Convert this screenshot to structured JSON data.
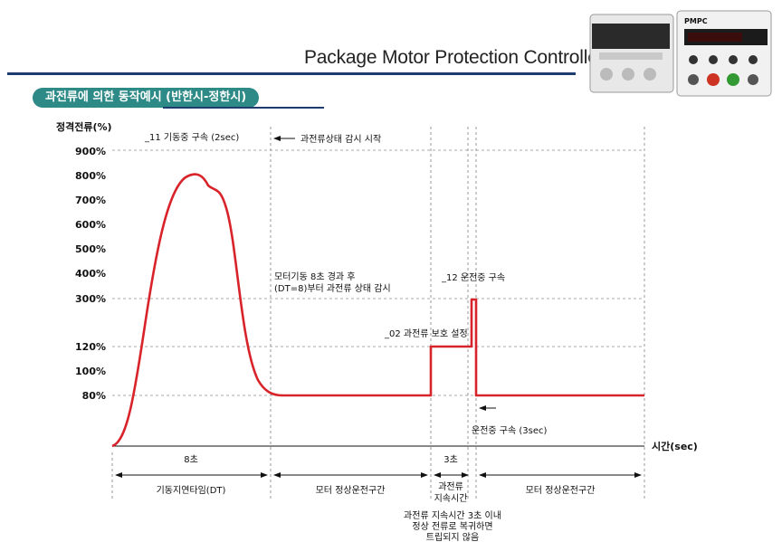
{
  "header": {
    "title": "Package Motor Protection Controller",
    "section_title": "과전류에 의한 동작예시 (반한시-정한시)"
  },
  "device": {
    "brand": "PMPC"
  },
  "chart_data": {
    "type": "line",
    "ylabel": "정격전류(%)",
    "xlabel": "시간(sec)",
    "y_ticks": [
      "900%",
      "800%",
      "700%",
      "600%",
      "500%",
      "400%",
      "300%",
      "120%",
      "100%",
      "80%"
    ],
    "series": [
      {
        "values_description_free": true,
        "points": [
          [
            0,
            0
          ],
          [
            0.5,
            200
          ],
          [
            1.0,
            500
          ],
          [
            1.6,
            760
          ],
          [
            2.0,
            800
          ],
          [
            2.4,
            750
          ],
          [
            2.9,
            560
          ],
          [
            3.5,
            250
          ],
          [
            4.2,
            110
          ],
          [
            5.0,
            80
          ],
          [
            8,
            80
          ],
          [
            14,
            80
          ],
          [
            14,
            120
          ],
          [
            15.5,
            120
          ],
          [
            15.5,
            300
          ],
          [
            15.7,
            300
          ],
          [
            15.7,
            80
          ],
          [
            20,
            80
          ]
        ]
      }
    ],
    "annotations": {
      "a1": "_11 기동중 구속 (2sec)",
      "a2": "과전류상태 감시 시작",
      "a3": "모터기동 8초 경과 후",
      "a4": "(DT=8)부터 과전류 상태 감시",
      "a5": "_12 운전중 구속",
      "a6": "_02 과전류 보호 설정",
      "a7": "운전중 구속 (3sec)"
    },
    "durations": {
      "d1": "8초",
      "d2": "3초"
    },
    "phases": {
      "p1": "기동지연타임(DT)",
      "p2": "모터 정상운전구간",
      "p3a": "과전류",
      "p3b": "지속시간",
      "p4": "모터 정상운전구간"
    },
    "footnote": [
      "과전류 지속시간 3초 이내",
      "정상 전류로 복귀하면",
      "트립되지 않음"
    ],
    "colors": {
      "line": "#d8232a",
      "grid": "#aaaaaa",
      "accent": "#2e8a86"
    }
  }
}
